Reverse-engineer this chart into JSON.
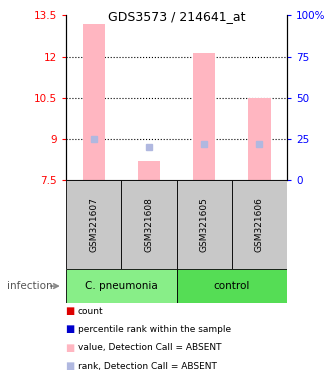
{
  "title": "GDS3573 / 214641_at",
  "samples": [
    "GSM321607",
    "GSM321608",
    "GSM321605",
    "GSM321606"
  ],
  "ylim_left": [
    7.5,
    13.5
  ],
  "ylim_right": [
    0,
    100
  ],
  "yticks_left": [
    7.5,
    9.0,
    10.5,
    12.0,
    13.5
  ],
  "yticks_right": [
    0,
    25,
    50,
    75,
    100
  ],
  "ytick_labels_left": [
    "7.5",
    "9",
    "10.5",
    "12",
    "13.5"
  ],
  "ytick_labels_right": [
    "0",
    "25",
    "50",
    "75",
    "100%"
  ],
  "bar_values": [
    13.2,
    8.22,
    12.15,
    10.5
  ],
  "bar_bottoms": [
    7.5,
    7.5,
    7.5,
    7.5
  ],
  "bar_color_absent": "#FFB6C1",
  "dot_rank_values": [
    9.0,
    8.72,
    8.82,
    8.82
  ],
  "dot_rank_color_absent": "#B0B8E0",
  "infection_label": "infection",
  "legend_colors": [
    "#DD0000",
    "#0000CC",
    "#FFB6C1",
    "#B0B8E0"
  ],
  "legend_labels": [
    "count",
    "percentile rank within the sample",
    "value, Detection Call = ABSENT",
    "rank, Detection Call = ABSENT"
  ],
  "bar_width": 0.4,
  "cpneumonia_color": "#88EE88",
  "control_color": "#55DD55",
  "gray_box_color": "#C8C8C8"
}
